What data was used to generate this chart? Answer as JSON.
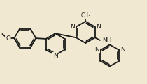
{
  "bg_color": "#f0e8d0",
  "bond_color": "#1a1a1a",
  "bond_width": 1.3,
  "font_size": 6.5,
  "figsize": [
    2.1,
    1.21
  ],
  "dpi": 100,
  "xlim": [
    0.0,
    9.5
  ],
  "ylim": [
    0.2,
    5.8
  ]
}
